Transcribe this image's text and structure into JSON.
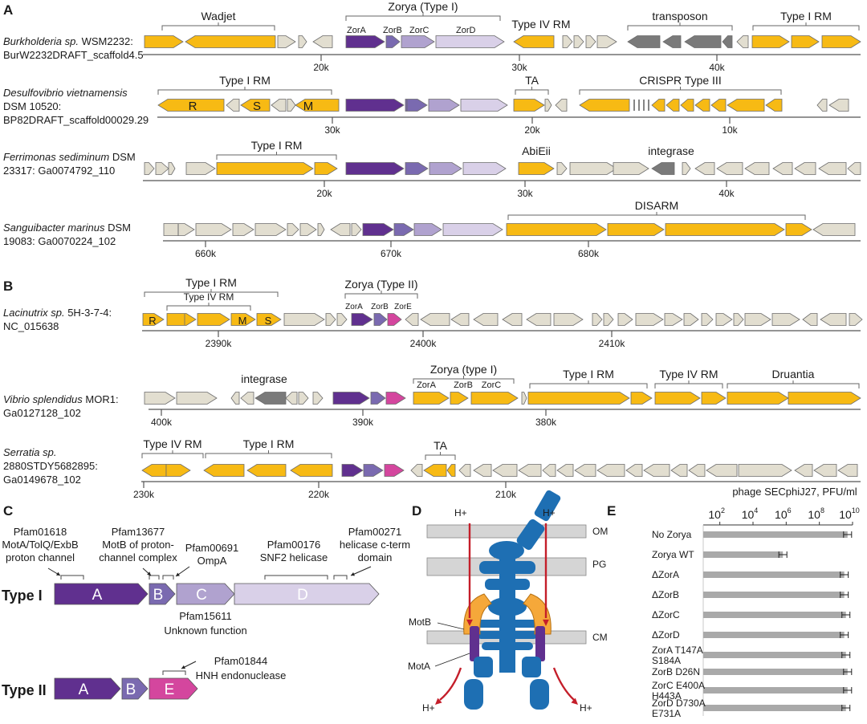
{
  "colors": {
    "yellow": "#F7BA14",
    "gray": "#E2DED0",
    "darkgray": "#7A7A7A",
    "zorA": "#60308F",
    "zorB": "#7A6AB0",
    "zorC": "#B0A2CF",
    "zorD": "#D9D0E8",
    "zorE": "#D4469E",
    "blue": "#1E6FB3",
    "orange": "#F5A83A",
    "red": "#C41E2A",
    "membrane": "#D5D5D5"
  },
  "panelA": {
    "label": "A",
    "loci": [
      {
        "name_italic": "Burkholderia sp.",
        "name_rest": " WSM2232:",
        "line2": "BurW2232DRAFT_scaffold4.5",
        "ticks": [
          "20k",
          "30k",
          "40k"
        ],
        "brackets": [
          "Wadjet",
          "Zorya (Type I)",
          "Type IV RM",
          "transposon",
          "Type I RM"
        ],
        "sublabels": [
          "ZorA",
          "ZorB",
          "ZorC",
          "ZorD"
        ]
      },
      {
        "name_italic": "Desulfovibrio vietnamensis",
        "name_rest": "",
        "line2": "DSM 10520:",
        "line3": "BP82DRAFT_scaffold00029.29",
        "ticks": [
          "30k",
          "20k",
          "10k"
        ],
        "brackets": [
          "Type I RM",
          "TA",
          "CRISPR Type III"
        ],
        "geneLetters": [
          "R",
          "S",
          "M"
        ]
      },
      {
        "name_italic": "Ferrimonas sediminum",
        "name_rest": " DSM",
        "line2": "23317: Ga0074792_110",
        "ticks": [
          "20k",
          "30k",
          "40k"
        ],
        "brackets": [
          "Type I RM",
          "AbiEii",
          "integrase"
        ]
      },
      {
        "name_italic": "Sanguibacter marinus",
        "name_rest": " DSM",
        "line2": "19083: Ga0070224_102",
        "ticks": [
          "660k",
          "670k",
          "680k"
        ],
        "brackets": [
          "DISARM"
        ]
      }
    ]
  },
  "panelB": {
    "label": "B",
    "loci": [
      {
        "name_italic": "Lacinutrix sp.",
        "name_rest": " 5H-3-7-4:",
        "line2": "NC_015638",
        "ticks": [
          "2390k",
          "2400k",
          "2410k"
        ],
        "brackets": [
          "Type I RM",
          "Type IV RM",
          "Zorya (Type II)"
        ],
        "sublabels": [
          "ZorA",
          "ZorB",
          "ZorE"
        ],
        "geneLetters": [
          "R",
          "M",
          "S"
        ]
      },
      {
        "name_italic": "Vibrio splendidus",
        "name_rest": " MOR1:",
        "line2": "Ga0127128_102",
        "ticks": [
          "400k",
          "390k",
          "380k"
        ],
        "brackets": [
          "integrase",
          "Zorya (type I)",
          "Type I RM",
          "Type IV RM",
          "Druantia"
        ],
        "sublabels": [
          "ZorA",
          "ZorB",
          "ZorC"
        ]
      },
      {
        "name_italic": "Serratia sp.",
        "name_rest": "",
        "line2": "2880STDY5682895:",
        "line3": "Ga0149678_102",
        "ticks": [
          "230k",
          "220k",
          "210k"
        ],
        "brackets": [
          "Type IV RM",
          "Type I RM",
          "TA"
        ]
      }
    ]
  },
  "panelC": {
    "label": "C",
    "type1_label": "Type I",
    "type2_label": "Type II",
    "genes1": [
      "A",
      "B",
      "C",
      "D"
    ],
    "genes2": [
      "A",
      "B",
      "E"
    ],
    "annotations": {
      "pf01618": [
        "Pfam01618",
        "MotA/TolQ/ExbB",
        "proton channel"
      ],
      "pf13677": [
        "Pfam13677",
        "MotB of proton-",
        "channel complex"
      ],
      "pf00691": [
        "Pfam00691",
        "OmpA"
      ],
      "pf00176": [
        "Pfam00176",
        "SNF2 helicase"
      ],
      "pf00271": [
        "Pfam00271",
        "helicase c-term",
        "domain"
      ],
      "pf15611": [
        "Pfam15611",
        "Unknown function"
      ],
      "pf01844": [
        "Pfam01844",
        "HNH endonuclease"
      ]
    }
  },
  "panelD": {
    "label": "D",
    "layers": [
      "OM",
      "PG",
      "CM"
    ],
    "protons": [
      "H+",
      "H+",
      "H+",
      "H+"
    ],
    "proteins": [
      "MotB",
      "MotA"
    ]
  },
  "panelE": {
    "label": "E",
    "title": "phage SECphiJ27, PFU/ml",
    "ticks": [
      "10",
      "10",
      "10",
      "10",
      "10"
    ],
    "tick_exponents": [
      "2",
      "4",
      "6",
      "8",
      "10"
    ],
    "chart_data": {
      "type": "bar",
      "title": "phage SECphiJ27, PFU/ml",
      "scale": "log10",
      "xlim": [
        1,
        10
      ],
      "orientation": "horizontal",
      "categories": [
        "No Zorya",
        "Zorya WT",
        "ΔZorA",
        "ΔZorB",
        "ΔZorC",
        "ΔZorD",
        "ZorA T147A S184A",
        "ZorB D26N",
        "ZorC E400A H443A",
        "ZorD D730A E731A"
      ],
      "values": [
        9.7,
        5.8,
        9.5,
        9.5,
        9.6,
        9.5,
        9.6,
        9.7,
        9.7,
        9.6
      ],
      "category_lines": [
        [
          "No Zorya"
        ],
        [
          "Zorya WT"
        ],
        [
          "ΔZorA"
        ],
        [
          "ΔZorB"
        ],
        [
          "ΔZorC"
        ],
        [
          "ΔZorD"
        ],
        [
          "ZorA T147A",
          "S184A"
        ],
        [
          "ZorB D26N"
        ],
        [
          "ZorC E400A",
          "H443A"
        ],
        [
          "ZorD D730A",
          "E731A"
        ]
      ]
    }
  }
}
